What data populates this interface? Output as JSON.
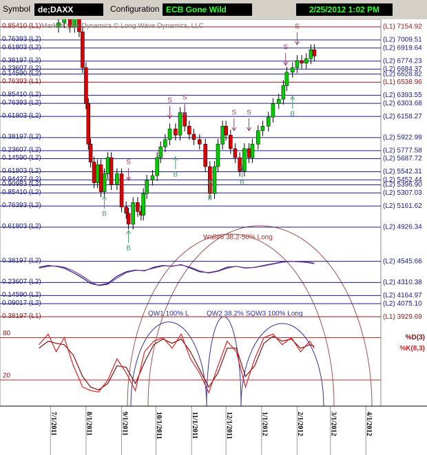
{
  "toolbar": {
    "symbol_label": "Symbol",
    "symbol": "de;DAXX",
    "configuration_label": "Configuration",
    "configuration": "ECB Gone Wild",
    "datetime": "2/25/2012 1:02 PM"
  },
  "chart_data": {
    "type": "candlestick",
    "watermark": "MarketCycle Dynamics © Long Wave Dynamics, LLC",
    "x": [
      7,
      12,
      17,
      21,
      25,
      28,
      31,
      33,
      35,
      38,
      41,
      44,
      47,
      50,
      53,
      58,
      62,
      66,
      68,
      72,
      76,
      79,
      81,
      84,
      89,
      93,
      96,
      100,
      104,
      109,
      113,
      117,
      121,
      125,
      130,
      135,
      139,
      143,
      146,
      150,
      153,
      157,
      161,
      165,
      169,
      173,
      176,
      181,
      185,
      190,
      194,
      199,
      203,
      206,
      211,
      215,
      219,
      223,
      227,
      230
    ],
    "open": [
      7150,
      7200,
      7250,
      7150,
      7300,
      7100,
      6700,
      6300,
      5850,
      5650,
      5420,
      5620,
      5320,
      5520,
      5700,
      5400,
      5520,
      5150,
      5080,
      4960,
      5200,
      5100,
      5060,
      5300,
      5450,
      5500,
      5700,
      5820,
      5900,
      6020,
      5950,
      6200,
      6050,
      5960,
      5900,
      5850,
      5600,
      5300,
      5600,
      5850,
      6050,
      5950,
      5800,
      5700,
      5550,
      5800,
      5700,
      5850,
      6000,
      6050,
      6150,
      6300,
      6350,
      6500,
      6650,
      6700,
      6780,
      6750,
      6800,
      6900
    ],
    "high": [
      7260,
      7310,
      7310,
      7360,
      7360,
      7160,
      6760,
      6360,
      5910,
      5710,
      5680,
      5680,
      5580,
      5760,
      5760,
      5580,
      5580,
      5210,
      5140,
      5260,
      5260,
      5160,
      5360,
      5510,
      5560,
      5760,
      5880,
      5960,
      6080,
      6080,
      6260,
      6260,
      6110,
      6020,
      5960,
      5910,
      5660,
      5660,
      5910,
      6110,
      6110,
      6010,
      5860,
      5760,
      5860,
      5860,
      5910,
      6060,
      6110,
      6210,
      6360,
      6410,
      6560,
      6710,
      6760,
      6840,
      6840,
      6860,
      6960,
      6960
    ],
    "low": [
      7090,
      7140,
      7090,
      7090,
      7040,
      6640,
      6240,
      5790,
      5590,
      5360,
      5360,
      5260,
      5260,
      5460,
      5340,
      5340,
      5090,
      5020,
      4900,
      4900,
      5040,
      5000,
      5000,
      5240,
      5390,
      5440,
      5640,
      5760,
      5840,
      5890,
      5890,
      5990,
      5900,
      5840,
      5790,
      5540,
      5240,
      5240,
      5540,
      5790,
      5890,
      5740,
      5640,
      5490,
      5490,
      5640,
      5640,
      5790,
      5940,
      5990,
      6090,
      6240,
      6290,
      6440,
      6590,
      6640,
      6690,
      6690,
      6740,
      6770
    ],
    "close": [
      7200,
      7250,
      7150,
      7300,
      7100,
      6700,
      6300,
      5850,
      5650,
      5420,
      5620,
      5320,
      5520,
      5700,
      5400,
      5520,
      5150,
      5080,
      4960,
      5200,
      5100,
      5060,
      5300,
      5450,
      5500,
      5700,
      5820,
      5900,
      6020,
      5950,
      6200,
      6050,
      5960,
      5900,
      5850,
      5600,
      5300,
      5600,
      5850,
      6050,
      5950,
      5800,
      5700,
      5550,
      5800,
      5700,
      5850,
      6000,
      6050,
      6150,
      6300,
      6350,
      6500,
      6650,
      6700,
      6780,
      6750,
      6800,
      6900,
      6830
    ],
    "up_color": "#00cc00",
    "down_color": "#dd0000",
    "xlim": [
      -44,
      288
    ],
    "xticks": [
      {
        "value": 0,
        "label": "7/1/2011"
      },
      {
        "value": 31,
        "label": "8/1/2011"
      },
      {
        "value": 62,
        "label": "9/1/2011"
      },
      {
        "value": 92,
        "label": "10/1/2011"
      },
      {
        "value": 123,
        "label": "11/1/2011"
      },
      {
        "value": 153,
        "label": "12/1/2011"
      },
      {
        "value": 184,
        "label": "1/1/2012"
      },
      {
        "value": 215,
        "label": "2/1/2012"
      },
      {
        "value": 244,
        "label": "3/1/2012"
      },
      {
        "value": 275,
        "label": "4/1/2012"
      }
    ],
    "ylim": [
      3854,
      7239
    ],
    "levels": [
      {
        "value": 7154.92,
        "label": "(L1) 7154.92",
        "ratio_label": "0.85410 (L1)",
        "color": "#8b1a1a"
      },
      {
        "value": 7009.51,
        "label": "(L2) 7009.51",
        "ratio_label": "0.76393 (L2)",
        "color": "#1a1a80"
      },
      {
        "value": 6919.64,
        "label": "(L2) 6919.64",
        "ratio_label": "0.61803 (L2)",
        "color": "#1a1a80"
      },
      {
        "value": 6774.23,
        "label": "(L2) 6774.23",
        "ratio_label": "0.38197 (L2)",
        "color": "#1a1a80"
      },
      {
        "value": 6684.37,
        "label": "(L2) 6684.37",
        "ratio_label": "0.23607 (L2)",
        "color": "#1a1a80"
      },
      {
        "value": 6628.82,
        "label": "(L2) 6628.82",
        "ratio_label": "0.14590 (L2)",
        "color": "#1a1a80"
      },
      {
        "value": 6538.96,
        "label": "(L1) 6538.96",
        "ratio_label": "0.76393 (L1)",
        "color": "#8b1a1a"
      },
      {
        "value": 6393.55,
        "label": "(L2) 6393.55",
        "ratio_label": "0.85410 (L2)",
        "color": "#1a1a80"
      },
      {
        "value": 6303.68,
        "label": "(L2) 6303.68",
        "ratio_label": "0.76393 (L2)",
        "color": "#1a1a80"
      },
      {
        "value": 6158.27,
        "label": "(L2) 6158.27",
        "ratio_label": "0.61803 (L2)",
        "color": "#1a1a80"
      },
      {
        "value": 5922.99,
        "label": "(L2) 5922.99",
        "ratio_label": "0.38197 (L2)",
        "color": "#1a1a80"
      },
      {
        "value": 5777.58,
        "label": "(L2) 5777.58",
        "ratio_label": "0.23607 (L2)",
        "color": "#1a1a80"
      },
      {
        "value": 5687.72,
        "label": "(L2) 5687.72",
        "ratio_label": "0.14590 (L2)",
        "color": "#1a1a80"
      },
      {
        "value": 5542.31,
        "label": "(L2) 5542.31",
        "ratio_label": "0.61803 (L2)",
        "color": "#1a1a80"
      },
      {
        "value": 5452.44,
        "label": "(L2) 5452.44",
        "ratio_label": "0.94427 (L2)",
        "color": "#1a1a80"
      },
      {
        "value": 5396.9,
        "label": "(L2) 5396.90",
        "ratio_label": "0.90983 (L2)",
        "color": "#1a1a80"
      },
      {
        "value": 5307.03,
        "label": "(L2) 5307.03",
        "ratio_label": "0.85410 (L2)",
        "color": "#1a1a80"
      },
      {
        "value": 5161.62,
        "label": "(L2) 5161.62",
        "ratio_label": "0.76393 (L2)",
        "color": "#1a1a80"
      },
      {
        "value": 4926.34,
        "label": "(L2) 4926.34",
        "ratio_label": "0.61803 (L2)",
        "color": "#1a1a80"
      },
      {
        "value": 4545.66,
        "label": "(L2) 4545.66",
        "ratio_label": "0.38197 (L2)",
        "color": "#1a1a80"
      },
      {
        "value": 4310.38,
        "label": "(L2) 4310.38",
        "ratio_label": "0.23607 (L2)",
        "color": "#1a1a80"
      },
      {
        "value": 4164.97,
        "label": "(L2) 4164.97",
        "ratio_label": "0.14590 (L2)",
        "color": "#1a1a80"
      },
      {
        "value": 4075.1,
        "label": "(L2) 4075.10",
        "ratio_label": "0.09017 (L2)",
        "color": "#1a1a80"
      },
      {
        "value": 3929.69,
        "label": "(L1) 3929.69",
        "ratio_label": "0.38197 (L1)",
        "color": "#8b1a1a"
      }
    ],
    "signals": [
      {
        "label": "B",
        "x": 47,
        "value": 5270,
        "color": "#4a9a6a"
      },
      {
        "label": "B",
        "x": 68,
        "value": 4888,
        "color": "#4a9a6a"
      },
      {
        "label": "B",
        "x": 109,
        "value": 5708,
        "color": "#4a9a6a"
      },
      {
        "label": "B",
        "x": 139,
        "value": 5447,
        "color": "#4a9a6a"
      },
      {
        "label": "B",
        "x": 167,
        "value": 5616,
        "color": "#4a9a6a"
      },
      {
        "label": "B",
        "x": 211,
        "value": 6381,
        "color": "#4a9a6a"
      },
      {
        "label": "S",
        "x": 68,
        "value": 5447,
        "color": "#9a3a6a"
      },
      {
        "label": "S",
        "x": 104,
        "value": 6136,
        "color": "#9a3a6a"
      },
      {
        "label": "S",
        "x": 117,
        "value": 6167,
        "color": "#9a3a6a"
      },
      {
        "label": "S",
        "x": 160,
        "value": 5999,
        "color": "#9a3a6a"
      },
      {
        "label": "S",
        "x": 173,
        "value": 5999,
        "color": "#9a3a6a"
      },
      {
        "label": "S",
        "x": 205,
        "value": 6726,
        "color": "#9a3a6a"
      },
      {
        "label": "S",
        "x": 215,
        "value": 6956,
        "color": "#9a3a6a"
      }
    ],
    "annotations": {
      "wall": "Wall#6 38.2-50% Long",
      "qw1": "QW1 100% L",
      "qw2": "QW2 38.2% SQW3 100% Long"
    },
    "indicator": {
      "x": [
        -10,
        -2,
        5,
        12,
        20,
        28,
        35,
        42,
        50,
        58,
        66,
        74,
        82,
        90,
        98,
        106,
        114,
        122,
        130,
        138,
        146,
        154,
        162,
        170,
        178,
        186,
        194,
        202,
        210,
        218,
        226,
        230
      ],
      "series": [
        {
          "color": "#1a1a80",
          "values": [
            4480,
            4500,
            4490,
            4470,
            4420,
            4360,
            4300,
            4280,
            4300,
            4380,
            4430,
            4450,
            4440,
            4480,
            4500,
            4490,
            4510,
            4470,
            4430,
            4420,
            4440,
            4480,
            4490,
            4470,
            4480,
            4500,
            4520,
            4540,
            4545,
            4540,
            4530,
            4520
          ]
        },
        {
          "color": "#7a3a8a",
          "values": [
            4470,
            4490,
            4495,
            4480,
            4440,
            4380,
            4320,
            4275,
            4290,
            4360,
            4420,
            4445,
            4445,
            4470,
            4495,
            4495,
            4505,
            4480,
            4440,
            4415,
            4435,
            4470,
            4490,
            4475,
            4478,
            4495,
            4515,
            4535,
            4545,
            4542,
            4535,
            4525
          ]
        }
      ]
    },
    "oscillator": {
      "ylim": [
        -17,
        100
      ],
      "yticks": [
        80,
        20
      ],
      "line_color": "#b03030",
      "x": [
        -10,
        -2,
        5,
        12,
        20,
        28,
        35,
        42,
        50,
        58,
        66,
        74,
        82,
        90,
        98,
        106,
        114,
        122,
        130,
        138,
        146,
        154,
        162,
        170,
        178,
        186,
        194,
        202,
        210,
        218,
        226,
        230
      ],
      "series": [
        {
          "name": "%D(3)",
          "color": "#7a1010",
          "values": [
            65,
            75,
            72,
            70,
            55,
            25,
            10,
            6,
            15,
            40,
            38,
            15,
            45,
            70,
            78,
            72,
            78,
            60,
            35,
            10,
            30,
            65,
            65,
            25,
            40,
            72,
            82,
            75,
            78,
            65,
            70,
            68
          ]
        },
        {
          "name": "%K(8,3)",
          "color": "#e02020",
          "values": [
            70,
            85,
            60,
            80,
            40,
            10,
            5,
            3,
            20,
            50,
            30,
            5,
            60,
            75,
            80,
            65,
            85,
            50,
            30,
            2,
            40,
            75,
            60,
            10,
            50,
            80,
            85,
            70,
            80,
            60,
            75,
            65
          ]
        }
      ]
    }
  }
}
